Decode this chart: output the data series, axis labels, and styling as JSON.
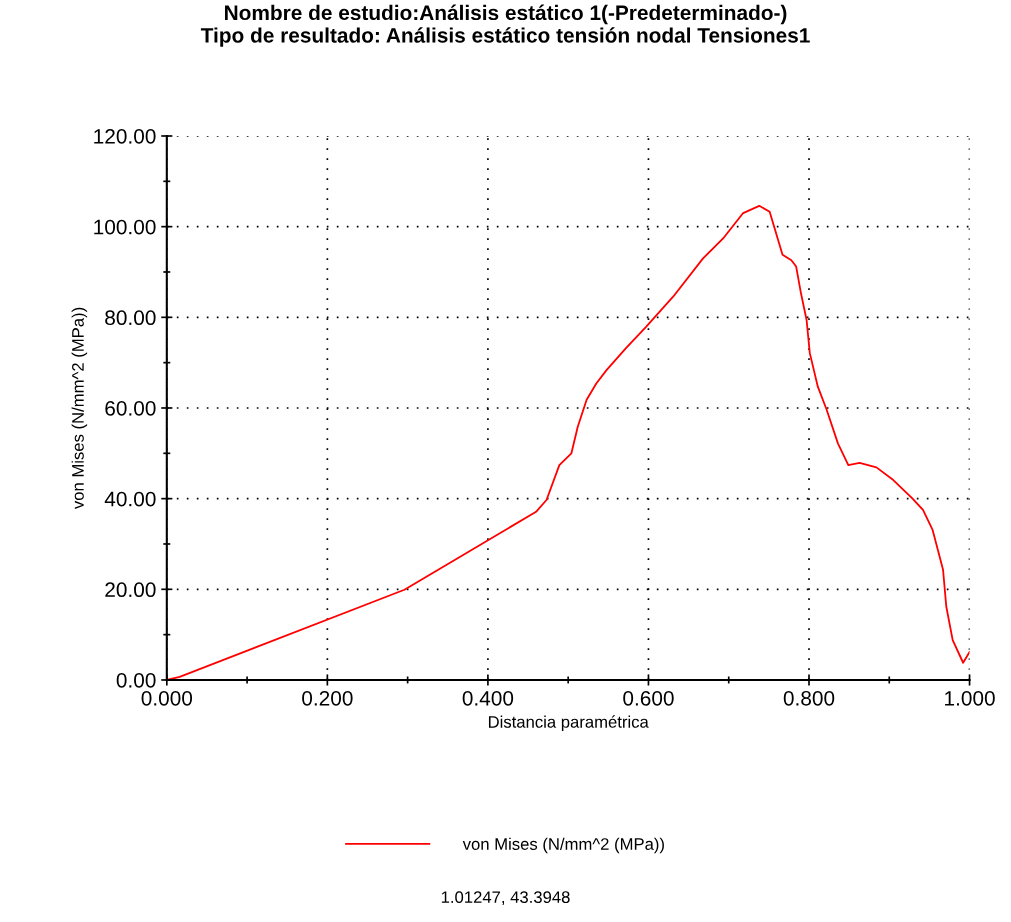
{
  "chart_data": {
    "type": "line",
    "title": "Nombre de estudio:Análisis estático 1(-Predeterminado-)\nTipo de resultado: Análisis estático tensión nodal Tensiones1",
    "xlabel": "Distancia paramétrica",
    "ylabel": "von Mises (N/mm^2 (MPa))",
    "series": [
      {
        "name": "von Mises (N/mm^2 (MPa))",
        "color": "#ff0000",
        "x": [
          0.0,
          0.016,
          0.296,
          0.46,
          0.473,
          0.489,
          0.504,
          0.512,
          0.523,
          0.535,
          0.548,
          0.572,
          0.597,
          0.631,
          0.668,
          0.693,
          0.718,
          0.738,
          0.751,
          0.767,
          0.778,
          0.784,
          0.79,
          0.797,
          0.801,
          0.811,
          0.822,
          0.836,
          0.849,
          0.863,
          0.884,
          0.905,
          0.929,
          0.942,
          0.954,
          0.967,
          0.971,
          0.979,
          0.992,
          1.0
        ],
        "values": [
          0.0,
          0.7,
          19.9,
          37.1,
          39.7,
          47.4,
          50.0,
          55.9,
          61.8,
          65.4,
          68.4,
          73.2,
          77.9,
          84.6,
          93.0,
          97.4,
          103.0,
          104.6,
          103.3,
          93.8,
          92.6,
          91.2,
          85.3,
          79.4,
          72.1,
          64.7,
          59.6,
          52.2,
          47.4,
          47.9,
          46.9,
          44.1,
          40.0,
          37.5,
          33.1,
          24.3,
          16.2,
          8.8,
          3.8,
          6.2
        ]
      }
    ],
    "xlim": [
      0,
      1
    ],
    "xticks": [
      {
        "value": 0,
        "label": "0.000"
      },
      {
        "value": 0.2,
        "label": "0.200"
      },
      {
        "value": 0.4,
        "label": "0.400"
      },
      {
        "value": 0.6,
        "label": "0.600"
      },
      {
        "value": 0.8,
        "label": "0.800"
      },
      {
        "value": 1,
        "label": "1.000"
      }
    ],
    "ylim": [
      0,
      120
    ],
    "yticks": [
      {
        "value": 0,
        "label": "0.00"
      },
      {
        "value": 20,
        "label": "20.00"
      },
      {
        "value": 40,
        "label": "40.00"
      },
      {
        "value": 60,
        "label": "60.00"
      },
      {
        "value": 80,
        "label": "80.00"
      },
      {
        "value": 100,
        "label": "100.00"
      },
      {
        "value": 120,
        "label": "120.00"
      }
    ],
    "grid": true,
    "legend": "bottom",
    "line_style": "solid",
    "marker": "none",
    "annotations": [
      "1.01247, 43.3948"
    ]
  }
}
